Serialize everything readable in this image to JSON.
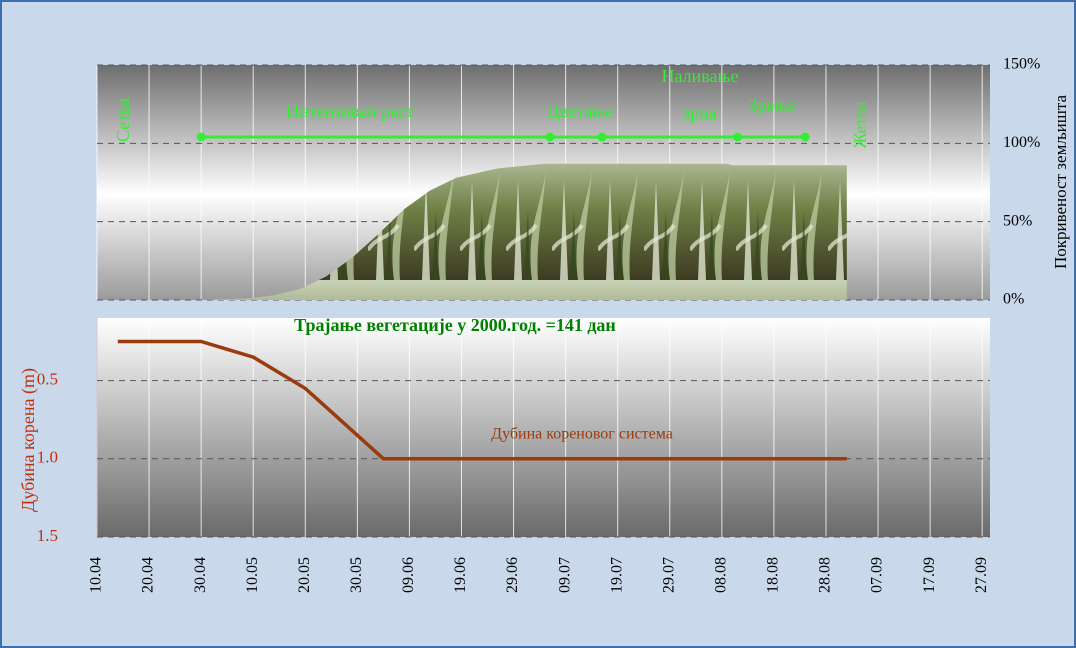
{
  "chart_data": [
    {
      "type": "area",
      "ylabel": "Покривеност земљишта",
      "x": [
        121,
        130,
        135,
        140,
        145,
        150,
        155,
        160,
        165,
        170,
        178,
        187,
        222,
        223,
        245
      ],
      "values": [
        0,
        1,
        3,
        7,
        15,
        27,
        42,
        58,
        70,
        78,
        84,
        87,
        87,
        86,
        86
      ],
      "xlim": [
        101,
        272.5
      ],
      "ylim": [
        0,
        150
      ],
      "yticks": [
        {
          "value": 0,
          "label": "0%"
        },
        {
          "value": 50,
          "label": "50%"
        },
        {
          "value": 100,
          "label": "100%"
        },
        {
          "value": 150,
          "label": "150%"
        }
      ],
      "stage_dates": [
        121,
        188,
        198,
        224,
        237
      ],
      "stage_labels": [
        "Сетва",
        "Интензиван раст",
        "Цветање",
        [
          "Наливање",
          "зрна"
        ],
        "Зрење",
        "Жетва"
      ],
      "grid": true
    },
    {
      "type": "line",
      "title": "Трајање вегетације у 2000.год. =141 дан",
      "ylabel": "Дубина корена (m)",
      "x": [
        105,
        121,
        126,
        131,
        136,
        141,
        146,
        151,
        156,
        245
      ],
      "series": [
        {
          "name": "Дубина кореновог система",
          "color": "#9a3b0e",
          "values": [
            0.25,
            0.25,
            0.3,
            0.35,
            0.45,
            0.55,
            0.7,
            0.85,
            1.0,
            1.0
          ]
        }
      ],
      "xlim": [
        101,
        272.5
      ],
      "ylim": [
        0.1,
        1.5
      ],
      "yticks": [
        0.5,
        {
          "value": 1.0,
          "label": "1.0"
        },
        1.5
      ],
      "xticks": [
        {
          "value": 101,
          "label": "10.04"
        },
        {
          "value": 111,
          "label": "20.04"
        },
        {
          "value": 121,
          "label": "30.04"
        },
        {
          "value": 131,
          "label": "10.05"
        },
        {
          "value": 141,
          "label": "20.05"
        },
        {
          "value": 151,
          "label": "30.05"
        },
        {
          "value": 161,
          "label": "09.06"
        },
        {
          "value": 171,
          "label": "19.06"
        },
        {
          "value": 181,
          "label": "29.06"
        },
        {
          "value": 191,
          "label": "09.07"
        },
        {
          "value": 201,
          "label": "19.07"
        },
        {
          "value": 211,
          "label": "29.07"
        },
        {
          "value": 221,
          "label": "08.08"
        },
        {
          "value": 231,
          "label": "18.08"
        },
        {
          "value": 241,
          "label": "28.08"
        },
        {
          "value": 251,
          "label": "07.09"
        },
        {
          "value": 261,
          "label": "17.09"
        },
        {
          "value": 271,
          "label": "27.09"
        }
      ],
      "grid": true
    }
  ]
}
